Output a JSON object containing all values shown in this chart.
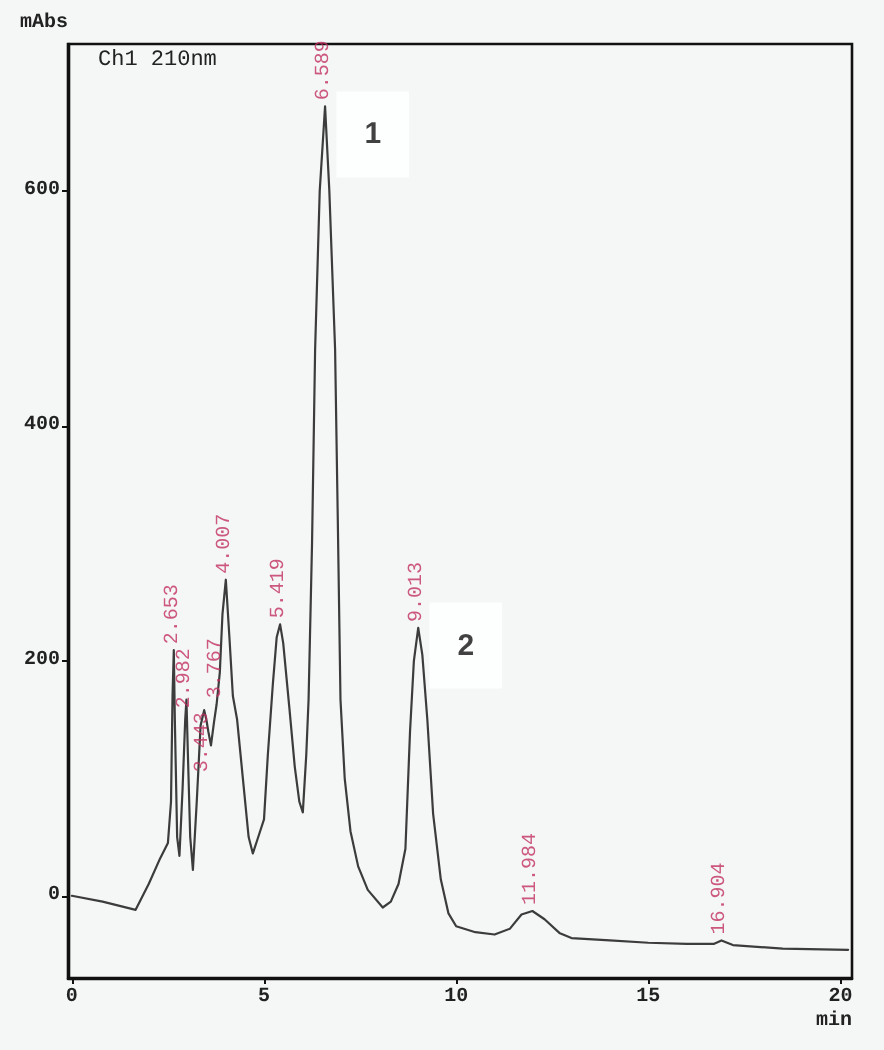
{
  "chart_data": {
    "type": "line",
    "title": "Ch1 210nm",
    "xlabel": "min",
    "ylabel": "mAbs",
    "x": [
      0,
      0.8,
      1.66,
      2.0,
      2.3,
      2.5,
      2.58,
      2.62,
      2.653,
      2.68,
      2.74,
      2.8,
      2.88,
      2.95,
      2.982,
      3.02,
      3.08,
      3.15,
      3.25,
      3.35,
      3.443,
      3.5,
      3.55,
      3.62,
      3.7,
      3.767,
      3.85,
      3.92,
      4.007,
      4.1,
      4.19,
      4.3,
      4.45,
      4.6,
      4.71,
      4.85,
      5.0,
      5.1,
      5.23,
      5.33,
      5.419,
      5.5,
      5.66,
      5.8,
      5.92,
      6.01,
      6.1,
      6.16,
      6.25,
      6.33,
      6.45,
      6.589,
      6.7,
      6.85,
      6.92,
      6.99,
      7.1,
      7.25,
      7.45,
      7.7,
      8.09,
      8.3,
      8.5,
      8.68,
      8.8,
      8.9,
      9.013,
      9.12,
      9.25,
      9.4,
      9.6,
      9.8,
      10.0,
      10.5,
      11.0,
      11.4,
      11.7,
      11.984,
      12.3,
      12.7,
      13.0,
      14.0,
      15.0,
      16.0,
      16.7,
      16.904,
      17.2,
      18.5,
      20.2
    ],
    "values": [
      0,
      -5,
      -12,
      10,
      32,
      45,
      80,
      170,
      209,
      150,
      50,
      34,
      90,
      150,
      167,
      120,
      50,
      22,
      80,
      145,
      158,
      150,
      140,
      128,
      148,
      163,
      190,
      240,
      269,
      220,
      170,
      150,
      100,
      50,
      36,
      50,
      65,
      120,
      180,
      220,
      231,
      215,
      160,
      110,
      80,
      71,
      120,
      167,
      300,
      465,
      600,
      672,
      600,
      465,
      320,
      167,
      100,
      55,
      25,
      5,
      -10,
      -5,
      10,
      40,
      140,
      200,
      228,
      205,
      150,
      70,
      14,
      -15,
      -26,
      -31,
      -33,
      -28,
      -16,
      -13,
      -20,
      -32,
      -36,
      -38,
      -40,
      -41,
      -41,
      -38,
      -42,
      -45,
      -46
    ],
    "color": "#3c3c3c",
    "marker": "none",
    "xlim": [
      -0.1,
      20.3
    ],
    "xticks": [
      0,
      5,
      10,
      15,
      20
    ],
    "ylim": [
      -70,
      725
    ],
    "yticks": [
      0,
      200,
      400,
      600
    ],
    "annotations": [
      {
        "text": "2.653",
        "x": 2.653,
        "y": 209
      },
      {
        "text": "2.982",
        "x": 2.982,
        "y": 167
      },
      {
        "text": "3.443",
        "x": 3.443,
        "y": 158
      },
      {
        "text": "3.767",
        "x": 3.767,
        "y": 163
      },
      {
        "text": "4.007",
        "x": 4.007,
        "y": 269
      },
      {
        "text": "5.419",
        "x": 5.419,
        "y": 231
      },
      {
        "text": "6.589",
        "x": 6.589,
        "y": 672
      },
      {
        "text": "9.013",
        "x": 9.013,
        "y": 228
      },
      {
        "text": "11.984",
        "x": 11.984,
        "y": -13
      },
      {
        "text": "16.904",
        "x": 16.904,
        "y": -38
      },
      {
        "text": "1",
        "x": 7.83,
        "y": 648
      },
      {
        "text": "2",
        "x": 10.25,
        "y": 213
      }
    ]
  }
}
